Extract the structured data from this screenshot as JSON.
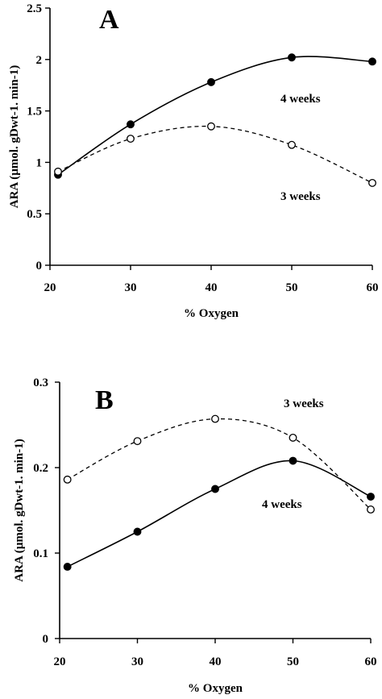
{
  "chart_data": [
    {
      "type": "line",
      "panel_label": "A",
      "xlabel": "% Oxygen",
      "ylabel": "ARA (µmol. gDwt-1. min-1)",
      "xlim": [
        20,
        60
      ],
      "ylim": [
        0,
        2.5
      ],
      "x_ticks": [
        "20",
        "30",
        "40",
        "50",
        "60"
      ],
      "y_ticks": [
        "0",
        "0.5",
        "1",
        "1.5",
        "2",
        "2.5"
      ],
      "grid": false,
      "series": [
        {
          "name": "4 weeks",
          "marker": "filled-circle",
          "line": "solid",
          "x": [
            21,
            30,
            40,
            50,
            60
          ],
          "y": [
            0.88,
            1.37,
            1.78,
            2.02,
            1.98
          ]
        },
        {
          "name": "3 weeks",
          "marker": "open-circle",
          "line": "dashed",
          "x": [
            21,
            30,
            40,
            50,
            60
          ],
          "y": [
            0.91,
            1.23,
            1.35,
            1.17,
            0.8
          ]
        }
      ]
    },
    {
      "type": "line",
      "panel_label": "B",
      "xlabel": "% Oxygen",
      "ylabel": "ARA (µmol. gDwt-1. min-1)",
      "xlim": [
        20,
        60
      ],
      "ylim": [
        0,
        0.3
      ],
      "x_ticks": [
        "20",
        "30",
        "40",
        "50",
        "60"
      ],
      "y_ticks": [
        "0",
        "0.1",
        "0.2",
        "0.3"
      ],
      "grid": false,
      "series": [
        {
          "name": "3 weeks",
          "marker": "open-circle",
          "line": "dashed",
          "x": [
            21,
            30,
            40,
            50,
            60
          ],
          "y": [
            0.186,
            0.231,
            0.257,
            0.235,
            0.151
          ]
        },
        {
          "name": "4 weeks",
          "marker": "filled-circle",
          "line": "solid",
          "x": [
            21,
            30,
            40,
            50,
            60
          ],
          "y": [
            0.084,
            0.125,
            0.175,
            0.208,
            0.166
          ]
        }
      ]
    }
  ]
}
